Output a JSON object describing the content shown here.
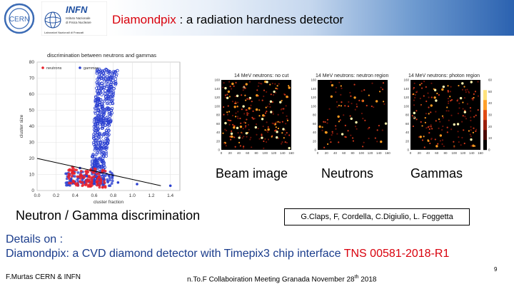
{
  "slide": {
    "title_red": "Diamondpix",
    "title_rest": " : a radiation hardness detector",
    "logos": {
      "cern_text": "CERN",
      "infn_text": "INFN",
      "infn_sub": [
        "Istituto Nazionale",
        "di Fisica Nucleare",
        "Laboratori Nazionali di Frascati"
      ]
    },
    "colors": {
      "accent_red": "#d9000c",
      "details_blue": "#1a3c8c",
      "header_blue": "#2b62b0"
    },
    "labels": {
      "beam": "Beam image",
      "neutrons": "Neutrons",
      "gammas": "Gammas",
      "discrimination": "Neutron / Gamma discrimination"
    },
    "authors": "G.Claps,  F, Cordella, C.Digiulio, L. Foggetta",
    "details_line1": "Details on :",
    "details_line2": "Diamondpix: a CVD diamond detector with Timepix3 chip interface",
    "details_ref": "TNS 00581-2018-R1",
    "footer_left": "F.Murtas CERN & INFN",
    "footer_center_pre": "n.To.F Collaboiration Meeting Granada November 28",
    "footer_center_sup": "th",
    "footer_center_post": " 2018",
    "page_number": "9"
  },
  "chart_data": [
    {
      "type": "scatter",
      "title": "discrimination between neutrons and gammas",
      "xlabel": "cluster fraction",
      "ylabel": "cluster size",
      "xlim": [
        0.0,
        1.5
      ],
      "ylim": [
        0,
        80
      ],
      "x_ticks": [
        "0.0",
        "0.2",
        "0.4",
        "0.6",
        "0.8",
        "1.0",
        "1.2",
        "1.4"
      ],
      "y_ticks": [
        "0",
        "10",
        "20",
        "30",
        "40",
        "50",
        "60",
        "70",
        "80"
      ],
      "grid": true,
      "legend": "top-left",
      "series": [
        {
          "name": "neutrons",
          "color": "#e8202a"
        },
        {
          "name": "gammas",
          "color": "#2a3fd0"
        }
      ],
      "cut_line": {
        "x": [
          0.0,
          1.3
        ],
        "y": [
          20,
          3
        ]
      }
    },
    {
      "type": "heatmap",
      "title": "14 MeV neutrons: no cut",
      "ticks": [
        "0",
        "20",
        "40",
        "60",
        "80",
        "100",
        "120",
        "140",
        "160"
      ]
    },
    {
      "type": "heatmap",
      "title": "14 MeV neutrons: neutron region",
      "ticks": [
        "0",
        "20",
        "40",
        "60",
        "80",
        "100",
        "120",
        "140",
        "160"
      ]
    },
    {
      "type": "heatmap",
      "title": "14 MeV neutrons: photon region",
      "ticks": [
        "0",
        "20",
        "40",
        "60",
        "80",
        "100",
        "120",
        "140",
        "160"
      ],
      "colorbar_ticks": [
        "0",
        "10",
        "20",
        "30",
        "40",
        "50",
        "60"
      ]
    }
  ]
}
